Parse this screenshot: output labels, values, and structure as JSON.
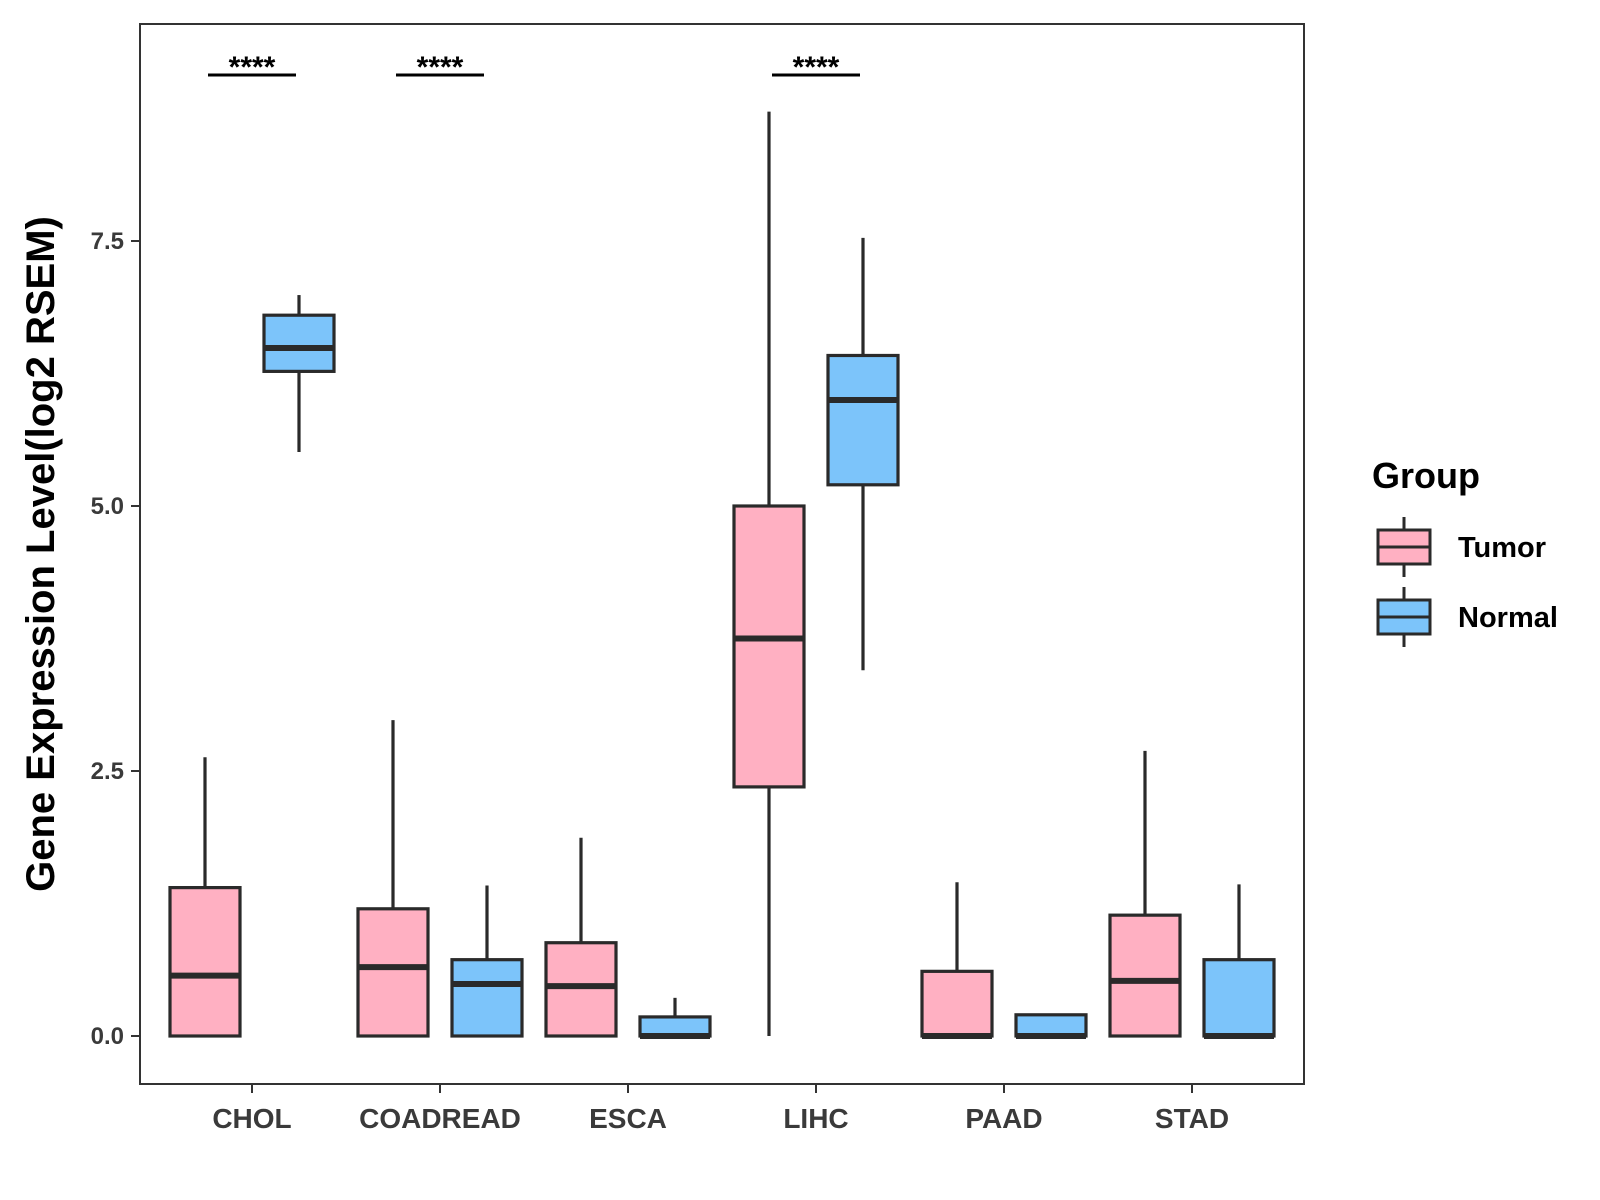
{
  "chart_data": {
    "type": "boxplot",
    "title": "",
    "xlabel": "",
    "ylabel": "Gene Expression Level(log2 RSEM)",
    "ylim": [
      -0.45,
      9.55
    ],
    "yticks": [
      0.0,
      2.5,
      5.0,
      7.5
    ],
    "ytick_labels": [
      "0.0",
      "2.5",
      "5.0",
      "7.5"
    ],
    "categories": [
      "CHOL",
      "COADREAD",
      "ESCA",
      "LIHC",
      "PAAD",
      "STAD"
    ],
    "grid": false,
    "legend": {
      "title": "Group",
      "position": "right"
    },
    "series": [
      {
        "name": "Tumor",
        "color": "#FFB0C2",
        "boxes": [
          {
            "min": 0.0,
            "q1": 0.0,
            "median": 0.57,
            "q3": 1.4,
            "max": 2.63
          },
          {
            "min": 0.0,
            "q1": 0.0,
            "median": 0.65,
            "q3": 1.2,
            "max": 2.98
          },
          {
            "min": 0.0,
            "q1": 0.0,
            "median": 0.47,
            "q3": 0.88,
            "max": 1.87
          },
          {
            "min": 0.0,
            "q1": 2.35,
            "median": 3.75,
            "q3": 5.0,
            "max": 8.72
          },
          {
            "min": 0.0,
            "q1": 0.0,
            "median": 0.0,
            "q3": 0.61,
            "max": 1.45
          },
          {
            "min": 0.0,
            "q1": 0.0,
            "median": 0.52,
            "q3": 1.14,
            "max": 2.69
          }
        ]
      },
      {
        "name": "Normal",
        "color": "#7CC4FA",
        "boxes": [
          {
            "min": 5.51,
            "q1": 6.27,
            "median": 6.49,
            "q3": 6.8,
            "max": 6.99
          },
          {
            "min": 0.0,
            "q1": 0.0,
            "median": 0.49,
            "q3": 0.72,
            "max": 1.42
          },
          {
            "min": 0.0,
            "q1": 0.0,
            "median": 0.0,
            "q3": 0.18,
            "max": 0.36
          },
          {
            "min": 3.45,
            "q1": 5.2,
            "median": 6.0,
            "q3": 6.42,
            "max": 7.53
          },
          {
            "min": 0.0,
            "q1": 0.0,
            "median": 0.0,
            "q3": 0.2,
            "max": 0.2
          },
          {
            "min": 0.0,
            "q1": 0.0,
            "median": 0.0,
            "q3": 0.72,
            "max": 1.43
          }
        ]
      }
    ],
    "annotations": [
      {
        "category": "CHOL",
        "text": "****"
      },
      {
        "category": "COADREAD",
        "text": "****"
      },
      {
        "category": "LIHC",
        "text": "****"
      }
    ]
  }
}
